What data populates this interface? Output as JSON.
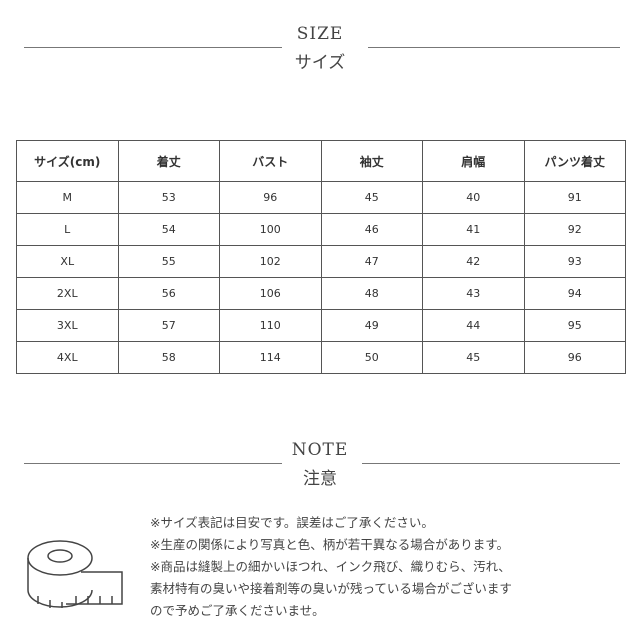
{
  "size_section": {
    "title_en": "SIZE",
    "title_ja": "サイズ"
  },
  "table": {
    "headers": [
      "サイズ(cm)",
      "着丈",
      "バスト",
      "袖丈",
      "肩幅",
      "パンツ着丈"
    ],
    "rows": [
      [
        "M",
        "53",
        "96",
        "45",
        "40",
        "91"
      ],
      [
        "L",
        "54",
        "100",
        "46",
        "41",
        "92"
      ],
      [
        "XL",
        "55",
        "102",
        "47",
        "42",
        "93"
      ],
      [
        "2XL",
        "56",
        "106",
        "48",
        "43",
        "94"
      ],
      [
        "3XL",
        "57",
        "110",
        "49",
        "44",
        "95"
      ],
      [
        "4XL",
        "58",
        "114",
        "50",
        "45",
        "96"
      ]
    ]
  },
  "note_section": {
    "title_en": "NOTE",
    "title_ja": "注意",
    "lines": [
      "※サイズ表記は目安です。誤差はご了承ください。",
      "※生産の関係により写真と色、柄が若干異なる場合があります。",
      "※商品は縫製上の細かいほつれ、インク飛び、織りむら、汚れ、",
      "素材特有の臭いや接着剤等の臭いが残っている場合がございます",
      "ので予めご了承くださいませ。"
    ]
  },
  "icons": {
    "note": "measuring-tape-icon"
  }
}
